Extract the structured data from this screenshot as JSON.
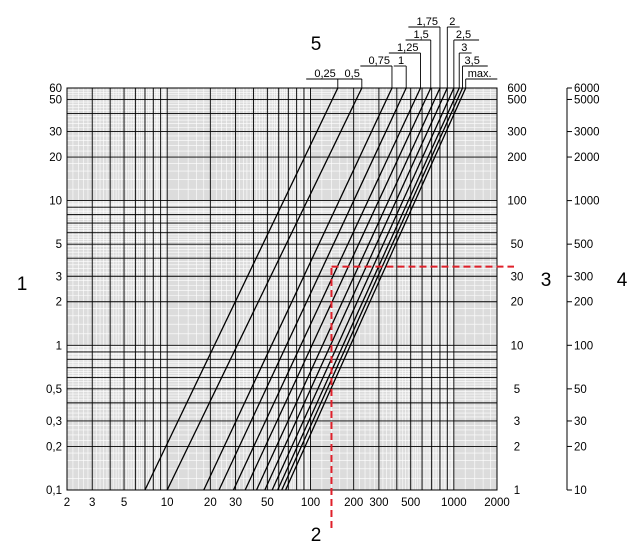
{
  "chart_data": {
    "type": "line",
    "title": "",
    "xaxis": {
      "label": "2",
      "scale": "log",
      "range": [
        2,
        2000
      ],
      "ticks": [
        2,
        3,
        5,
        10,
        20,
        30,
        50,
        100,
        200,
        300,
        500,
        1000,
        2000
      ],
      "tick_labels": [
        "2",
        "3",
        "5",
        "10",
        "20",
        "30",
        "50",
        "100",
        "200",
        "300",
        "500",
        "1000",
        "2000"
      ]
    },
    "yaxis_left": {
      "label": "1",
      "scale": "log",
      "range": [
        0.1,
        60
      ],
      "ticks": [
        0.1,
        0.2,
        0.3,
        0.5,
        1,
        2,
        3,
        5,
        10,
        20,
        30,
        50,
        60
      ],
      "tick_labels": [
        "0,1",
        "0,2",
        "0,3",
        "0,5",
        "1",
        "2",
        "3",
        "5",
        "10",
        "20",
        "30",
        "50",
        "60"
      ]
    },
    "yaxis_right": {
      "label": "3",
      "scale": "log",
      "range": [
        1,
        600
      ],
      "ticks": [
        1,
        2,
        3,
        5,
        10,
        20,
        30,
        50,
        100,
        200,
        300,
        500,
        600
      ],
      "tick_labels": [
        "1",
        "2",
        "3",
        "5",
        "10",
        "20",
        "30",
        "50",
        "100",
        "200",
        "300",
        "500",
        "600"
      ]
    },
    "yaxis_far_right": {
      "label": "4",
      "scale": "log",
      "range": [
        10,
        6000
      ],
      "ticks": [
        10,
        20,
        30,
        50,
        100,
        200,
        300,
        500,
        1000,
        2000,
        3000,
        5000,
        6000
      ],
      "tick_labels": [
        "10",
        "20",
        "30",
        "50",
        "100",
        "200",
        "300",
        "500",
        "1000",
        "2000",
        "3000",
        "5000",
        "6000"
      ]
    },
    "family_label": "5",
    "series": [
      {
        "name": "0,25",
        "points": [
          [
            7,
            0.1
          ],
          [
            155,
            60
          ]
        ]
      },
      {
        "name": "0,5",
        "points": [
          [
            10,
            0.1
          ],
          [
            228,
            60
          ]
        ]
      },
      {
        "name": "0,75",
        "points": [
          [
            18,
            0.1
          ],
          [
            370,
            60
          ]
        ]
      },
      {
        "name": "1",
        "points": [
          [
            23,
            0.1
          ],
          [
            465,
            60
          ]
        ]
      },
      {
        "name": "1,25",
        "points": [
          [
            29,
            0.1
          ],
          [
            585,
            60
          ]
        ]
      },
      {
        "name": "1,5",
        "points": [
          [
            35,
            0.1
          ],
          [
            690,
            60
          ]
        ]
      },
      {
        "name": "1,75",
        "points": [
          [
            42,
            0.1
          ],
          [
            800,
            60
          ]
        ]
      },
      {
        "name": "2",
        "points": [
          [
            48,
            0.1
          ],
          [
            900,
            60
          ]
        ]
      },
      {
        "name": "2,5",
        "points": [
          [
            54,
            0.1
          ],
          [
            1000,
            60
          ]
        ]
      },
      {
        "name": "3",
        "points": [
          [
            59,
            0.1
          ],
          [
            1090,
            60
          ]
        ]
      },
      {
        "name": "3,5",
        "points": [
          [
            63,
            0.1
          ],
          [
            1150,
            60
          ]
        ]
      },
      {
        "name": "max.",
        "points": [
          [
            67,
            0.1
          ],
          [
            1210,
            60
          ]
        ]
      }
    ],
    "reading_example": {
      "x": 140,
      "y": 3.5
    },
    "grid": true,
    "legend": "none"
  }
}
